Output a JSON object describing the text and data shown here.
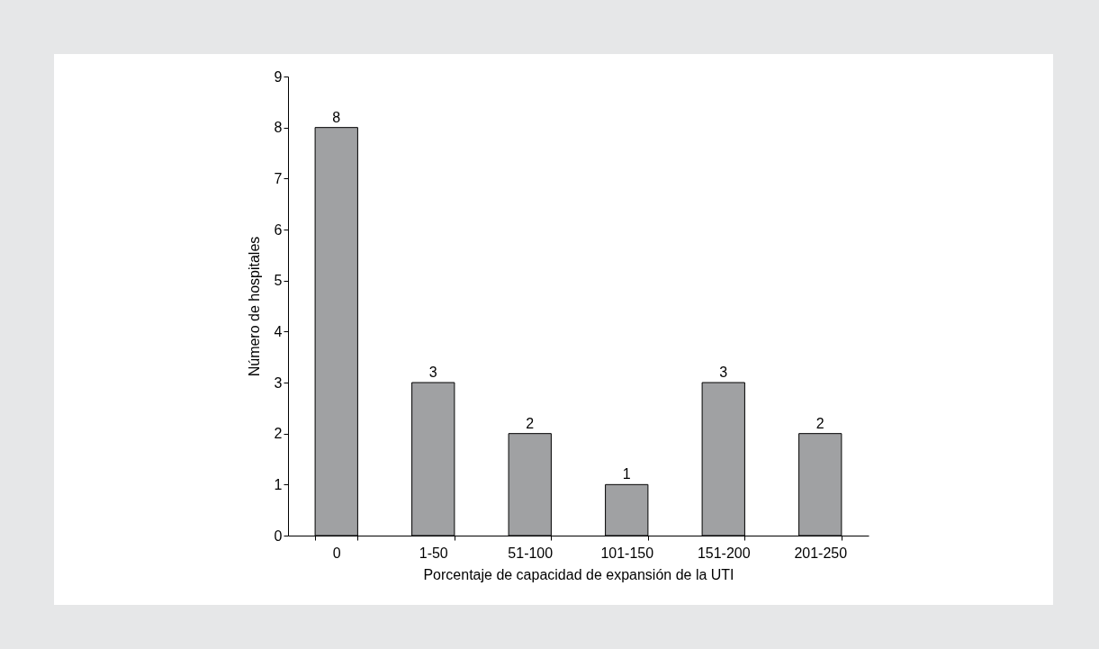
{
  "chart_data": {
    "type": "bar",
    "xlabel": "Porcentaje de capacidad de expansión de la UTI",
    "ylabel": "Número de hospitales",
    "categories": [
      "0",
      "1-50",
      "51-100",
      "101-150",
      "151-200",
      "201-250"
    ],
    "values": [
      8,
      3,
      2,
      1,
      3,
      2
    ],
    "color": "#a0a1a3",
    "ylim": [
      0,
      9
    ],
    "yticks": [
      0,
      1,
      2,
      3,
      4,
      5,
      6,
      7,
      8,
      9
    ],
    "grid": false,
    "data_labels": true
  }
}
